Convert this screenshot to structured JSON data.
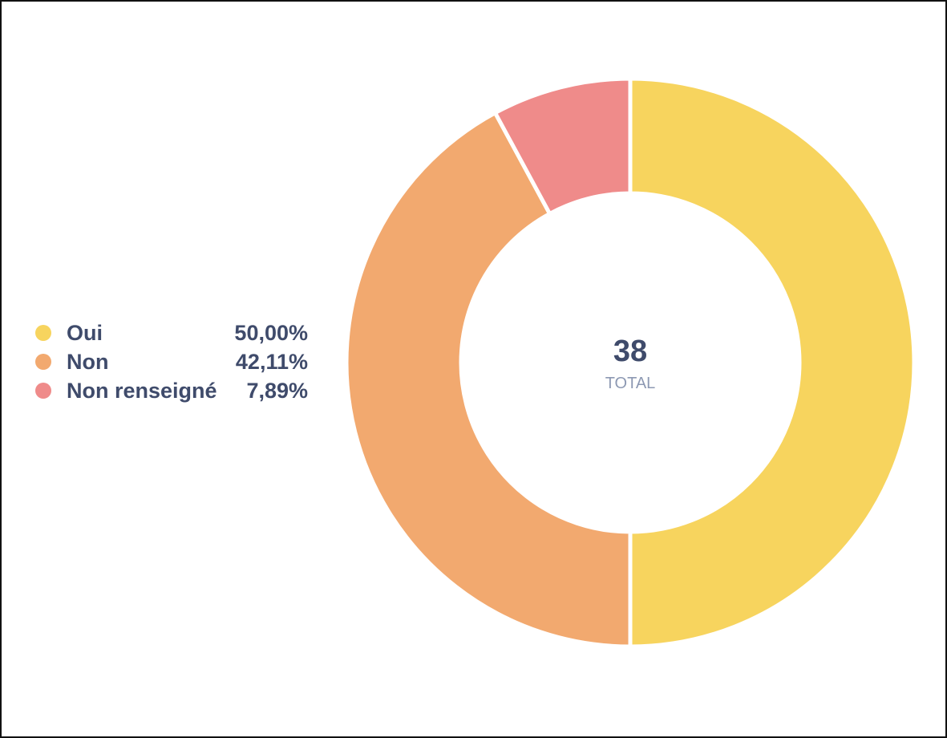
{
  "chart_data": {
    "type": "pie",
    "variant": "donut",
    "total": "38",
    "total_label": "TOTAL",
    "categories": [
      "Oui",
      "Non",
      "Non renseigné"
    ],
    "values": [
      19,
      16,
      3
    ],
    "percent_labels": [
      "50,00%",
      "42,11%",
      "7,89%"
    ],
    "colors": [
      "#f7d45e",
      "#f2a96f",
      "#ef8b8a"
    ],
    "legend_position": "left"
  },
  "legend": [
    {
      "label": "Oui",
      "value": "50,00%",
      "color": "#f7d45e"
    },
    {
      "label": "Non",
      "value": "42,11%",
      "color": "#f2a96f"
    },
    {
      "label": "Non renseigné",
      "value": "7,89%",
      "color": "#ef8b8a"
    }
  ]
}
